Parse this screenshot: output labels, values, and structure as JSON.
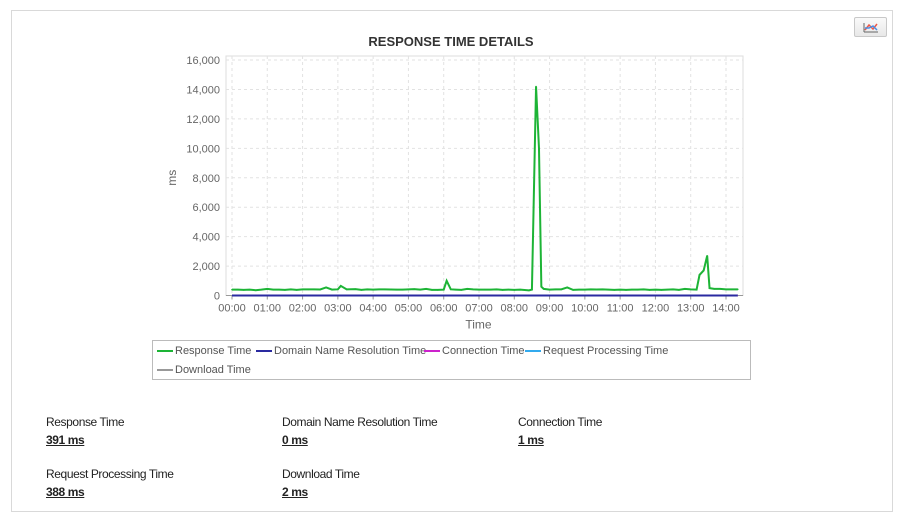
{
  "chart_data": {
    "type": "line",
    "title": "RESPONSE TIME DETAILS",
    "xlabel": "Time",
    "ylabel": "ms",
    "ylim": [
      0,
      16000
    ],
    "yticks": [
      "0",
      "2,000",
      "4,000",
      "6,000",
      "8,000",
      "10,000",
      "12,000",
      "14,000",
      "16,000"
    ],
    "yticks_values": [
      0,
      2000,
      4000,
      6000,
      8000,
      10000,
      12000,
      14000,
      16000
    ],
    "xticks": [
      "00:00",
      "01:00",
      "02:00",
      "03:00",
      "04:00",
      "05:00",
      "06:00",
      "07:00",
      "08:00",
      "09:00",
      "10:00",
      "11:00",
      "12:00",
      "13:00",
      "14:00"
    ],
    "xlim": [
      "00:00",
      "14:20"
    ],
    "grid": true,
    "legend_position": "bottom",
    "series": [
      {
        "name": "Response Time",
        "color": "#1db436",
        "points": [
          [
            "00:00",
            400
          ],
          [
            "00:10",
            400
          ],
          [
            "00:20",
            380
          ],
          [
            "00:30",
            400
          ],
          [
            "00:40",
            360
          ],
          [
            "00:50",
            400
          ],
          [
            "01:00",
            450
          ],
          [
            "01:10",
            400
          ],
          [
            "01:20",
            400
          ],
          [
            "01:30",
            380
          ],
          [
            "01:40",
            420
          ],
          [
            "01:50",
            380
          ],
          [
            "02:00",
            420
          ],
          [
            "02:10",
            420
          ],
          [
            "02:20",
            420
          ],
          [
            "02:30",
            410
          ],
          [
            "02:40",
            550
          ],
          [
            "02:50",
            400
          ],
          [
            "03:00",
            420
          ],
          [
            "03:05",
            650
          ],
          [
            "03:15",
            420
          ],
          [
            "03:30",
            430
          ],
          [
            "03:40",
            380
          ],
          [
            "03:50",
            420
          ],
          [
            "04:00",
            400
          ],
          [
            "04:10",
            420
          ],
          [
            "04:20",
            420
          ],
          [
            "04:30",
            410
          ],
          [
            "04:40",
            400
          ],
          [
            "04:50",
            400
          ],
          [
            "05:00",
            420
          ],
          [
            "05:10",
            430
          ],
          [
            "05:20",
            400
          ],
          [
            "05:30",
            450
          ],
          [
            "05:40",
            380
          ],
          [
            "05:50",
            380
          ],
          [
            "06:00",
            400
          ],
          [
            "06:05",
            1000
          ],
          [
            "06:12",
            420
          ],
          [
            "06:20",
            400
          ],
          [
            "06:30",
            380
          ],
          [
            "06:40",
            450
          ],
          [
            "06:50",
            420
          ],
          [
            "07:00",
            400
          ],
          [
            "07:10",
            400
          ],
          [
            "07:20",
            400
          ],
          [
            "07:30",
            420
          ],
          [
            "07:40",
            380
          ],
          [
            "07:50",
            400
          ],
          [
            "08:00",
            380
          ],
          [
            "08:10",
            400
          ],
          [
            "08:25",
            350
          ],
          [
            "08:30",
            400
          ],
          [
            "08:37",
            14200
          ],
          [
            "08:42",
            10000
          ],
          [
            "08:46",
            600
          ],
          [
            "08:50",
            450
          ],
          [
            "09:00",
            400
          ],
          [
            "09:10",
            420
          ],
          [
            "09:20",
            420
          ],
          [
            "09:30",
            550
          ],
          [
            "09:40",
            380
          ],
          [
            "09:50",
            400
          ],
          [
            "10:00",
            400
          ],
          [
            "10:10",
            420
          ],
          [
            "10:20",
            410
          ],
          [
            "10:30",
            420
          ],
          [
            "10:40",
            400
          ],
          [
            "10:50",
            380
          ],
          [
            "11:00",
            400
          ],
          [
            "11:10",
            380
          ],
          [
            "11:20",
            400
          ],
          [
            "11:30",
            400
          ],
          [
            "11:40",
            420
          ],
          [
            "11:50",
            380
          ],
          [
            "12:00",
            400
          ],
          [
            "12:10",
            380
          ],
          [
            "12:20",
            400
          ],
          [
            "12:30",
            420
          ],
          [
            "12:40",
            380
          ],
          [
            "12:50",
            450
          ],
          [
            "13:00",
            420
          ],
          [
            "13:10",
            400
          ],
          [
            "13:15",
            1400
          ],
          [
            "13:22",
            1700
          ],
          [
            "13:28",
            2700
          ],
          [
            "13:32",
            500
          ],
          [
            "13:40",
            450
          ],
          [
            "13:50",
            450
          ],
          [
            "14:00",
            420
          ],
          [
            "14:10",
            420
          ],
          [
            "14:20",
            420
          ]
        ]
      },
      {
        "name": "Domain Name Resolution Time",
        "color": "#2a2aa0",
        "constant": 0
      },
      {
        "name": "Connection Time",
        "color": "#cc22cc",
        "constant": 1
      },
      {
        "name": "Request Processing Time",
        "color": "#33aaee",
        "constant": null
      },
      {
        "name": "Download Time",
        "color": "#999999",
        "constant": 2
      }
    ]
  },
  "stats": [
    {
      "label": "Response Time",
      "value": "391 ms"
    },
    {
      "label": "Domain Name Resolution Time",
      "value": "0 ms"
    },
    {
      "label": "Connection Time",
      "value": "1 ms"
    },
    {
      "label": "Request Processing Time",
      "value": "388 ms"
    },
    {
      "label": "Download Time",
      "value": "2 ms"
    }
  ],
  "toolbar": {
    "chart_type_icon": "chart-type-icon"
  }
}
